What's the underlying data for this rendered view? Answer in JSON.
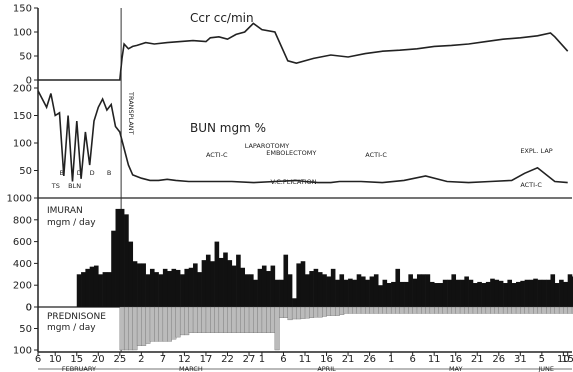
{
  "chart_data": [
    {
      "type": "line",
      "title": "Ccr cc/min",
      "ylim": [
        0,
        150
      ],
      "yticks": [
        0,
        50,
        100,
        150
      ],
      "x": [
        0,
        19,
        19.5,
        20,
        21,
        22,
        23,
        25,
        27,
        30,
        33,
        36,
        39,
        40,
        42,
        44,
        46,
        48,
        50,
        52,
        55,
        58,
        60,
        64,
        68,
        72,
        76,
        80,
        84,
        88,
        92,
        96,
        100,
        104,
        108,
        112,
        116,
        119,
        120,
        123
      ],
      "values": [
        0,
        0,
        45,
        75,
        65,
        70,
        72,
        78,
        75,
        78,
        80,
        82,
        80,
        88,
        90,
        85,
        95,
        100,
        118,
        105,
        100,
        40,
        35,
        45,
        52,
        48,
        55,
        60,
        62,
        65,
        70,
        72,
        75,
        80,
        85,
        88,
        92,
        98,
        90,
        60
      ]
    },
    {
      "type": "line",
      "title": "BUN mgm %",
      "ylim": [
        0,
        200
      ],
      "yticks": [
        50,
        100,
        150,
        200
      ],
      "x": [
        0,
        1,
        2,
        3,
        4,
        5,
        6,
        7,
        8,
        9,
        10,
        11,
        12,
        13,
        14,
        15,
        16,
        17,
        18,
        19,
        20,
        21,
        22,
        24,
        26,
        28,
        30,
        32,
        35,
        40,
        45,
        50,
        55,
        60,
        62,
        65,
        68,
        70,
        75,
        80,
        85,
        90,
        95,
        100,
        105,
        110,
        113,
        116,
        120,
        123
      ],
      "values": [
        195,
        180,
        165,
        190,
        150,
        155,
        40,
        150,
        30,
        140,
        35,
        120,
        60,
        140,
        165,
        180,
        160,
        170,
        130,
        120,
        90,
        60,
        42,
        36,
        32,
        32,
        34,
        32,
        30,
        30,
        30,
        28,
        30,
        32,
        30,
        28,
        28,
        30,
        30,
        28,
        32,
        40,
        30,
        28,
        30,
        32,
        45,
        55,
        30,
        28
      ],
      "annotations": [
        "ACTI-C",
        "LAPAROTOMY",
        "EMBOLECTOMY",
        "V.C.PLICATION",
        "ACTI-C",
        "EXPL. LAP",
        "ACTI-C",
        "TRANSPLANT",
        "TS",
        "BLN",
        "B",
        "D",
        "D",
        "B"
      ]
    },
    {
      "type": "bar",
      "title": "IMURAN",
      "ylabel": "mgm / day",
      "ylim": [
        0,
        1000
      ],
      "yticks": [
        0,
        200,
        400,
        600,
        800,
        1000
      ],
      "x_start": 9,
      "values": [
        300,
        320,
        350,
        370,
        380,
        300,
        320,
        320,
        700,
        900,
        900,
        850,
        600,
        420,
        400,
        400,
        300,
        350,
        320,
        300,
        350,
        330,
        350,
        340,
        300,
        350,
        360,
        400,
        320,
        430,
        480,
        420,
        600,
        450,
        500,
        430,
        380,
        480,
        360,
        300,
        300,
        250,
        350,
        380,
        330,
        380,
        250,
        250,
        480,
        300,
        80,
        400,
        420,
        300,
        330,
        350,
        320,
        300,
        280,
        350,
        250,
        300,
        250,
        260,
        250,
        300,
        280,
        250,
        280,
        300,
        200,
        250,
        220,
        230,
        350,
        230,
        230,
        300,
        260,
        300,
        300,
        300,
        230,
        220,
        220,
        250,
        250,
        300,
        250,
        250,
        280,
        250,
        220,
        230,
        220,
        230,
        260,
        250,
        240,
        220,
        250,
        220,
        230,
        240,
        250,
        250,
        260,
        250,
        250,
        250,
        300,
        220,
        250,
        230,
        300,
        280,
        300,
        280,
        250,
        230
      ]
    },
    {
      "type": "bar",
      "title": "PREDNISONE",
      "ylabel": "mgm / day",
      "ylim": [
        0,
        100
      ],
      "yticks": [
        0,
        50,
        100
      ],
      "inverted": true,
      "x_start": 19,
      "values": [
        100,
        100,
        100,
        100,
        90,
        90,
        85,
        80,
        80,
        80,
        80,
        80,
        75,
        70,
        65,
        65,
        60,
        60,
        60,
        60,
        60,
        60,
        60,
        60,
        60,
        60,
        60,
        60,
        60,
        60,
        60,
        60,
        60,
        60,
        60,
        60,
        100,
        25,
        25,
        30,
        28,
        28,
        27,
        26,
        25,
        24,
        24,
        22,
        20,
        20,
        20,
        18,
        15,
        15,
        15,
        15,
        15,
        15,
        15,
        15,
        15,
        15,
        15,
        15,
        15,
        15,
        15,
        15,
        15,
        15,
        15,
        15,
        15,
        15,
        15,
        15,
        15,
        15,
        15,
        15,
        15,
        15,
        15,
        15,
        15,
        15,
        15,
        15,
        15,
        15,
        15,
        15,
        15,
        15,
        15,
        15,
        15,
        15,
        15,
        15,
        15,
        15,
        15,
        15,
        15,
        15,
        15,
        15,
        15,
        15,
        15,
        15,
        15,
        15,
        15,
        15,
        15,
        15,
        15,
        15,
        15,
        15,
        100,
        100,
        100,
        100,
        100,
        100,
        100,
        100,
        100,
        100,
        100,
        100,
        100,
        100
      ]
    }
  ],
  "x_axis": {
    "tick_labels": [
      "6",
      "10",
      "15",
      "20",
      "25",
      "2",
      "7",
      "12",
      "17",
      "22",
      "27",
      "1",
      "6",
      "11",
      "16",
      "21",
      "26",
      "1",
      "6",
      "11",
      "16",
      "21",
      "26",
      "31",
      "5",
      "10",
      "15"
    ],
    "month_labels": [
      "FEBRUARY",
      "MARCH",
      "APRIL",
      "MAY",
      "JUNE"
    ]
  }
}
